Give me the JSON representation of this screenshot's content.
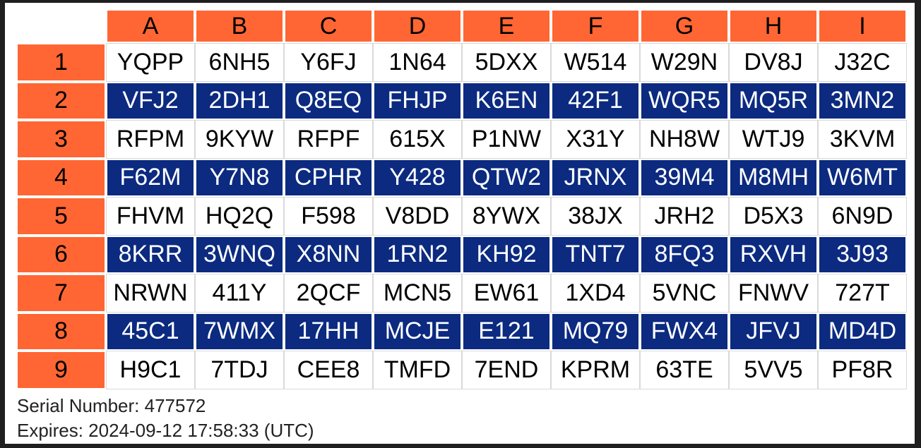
{
  "grid": {
    "columns": [
      "A",
      "B",
      "C",
      "D",
      "E",
      "F",
      "G",
      "H",
      "I"
    ],
    "rows": [
      {
        "label": "1",
        "codes": [
          "YQPP",
          "6NH5",
          "Y6FJ",
          "1N64",
          "5DXX",
          "W514",
          "W29N",
          "DV8J",
          "J32C"
        ]
      },
      {
        "label": "2",
        "codes": [
          "VFJ2",
          "2DH1",
          "Q8EQ",
          "FHJP",
          "K6EN",
          "42F1",
          "WQR5",
          "MQ5R",
          "3MN2"
        ]
      },
      {
        "label": "3",
        "codes": [
          "RFPM",
          "9KYW",
          "RFPF",
          "615X",
          "P1NW",
          "X31Y",
          "NH8W",
          "WTJ9",
          "3KVM"
        ]
      },
      {
        "label": "4",
        "codes": [
          "F62M",
          "Y7N8",
          "CPHR",
          "Y428",
          "QTW2",
          "JRNX",
          "39M4",
          "M8MH",
          "W6MT"
        ]
      },
      {
        "label": "5",
        "codes": [
          "FHVM",
          "HQ2Q",
          "F598",
          "V8DD",
          "8YWX",
          "38JX",
          "JRH2",
          "D5X3",
          "6N9D"
        ]
      },
      {
        "label": "6",
        "codes": [
          "8KRR",
          "3WNQ",
          "X8NN",
          "1RN2",
          "KH92",
          "TNT7",
          "8FQ3",
          "RXVH",
          "3J93"
        ]
      },
      {
        "label": "7",
        "codes": [
          "NRWN",
          "411Y",
          "2QCF",
          "MCN5",
          "EW61",
          "1XD4",
          "5VNC",
          "FNWV",
          "727T"
        ]
      },
      {
        "label": "8",
        "codes": [
          "45C1",
          "7WMX",
          "17HH",
          "MCJE",
          "E121",
          "MQ79",
          "FWX4",
          "JFVJ",
          "MD4D"
        ]
      },
      {
        "label": "9",
        "codes": [
          "H9C1",
          "7TDJ",
          "CEE8",
          "TMFD",
          "7END",
          "KPRM",
          "63TE",
          "5VV5",
          "PF8R"
        ]
      }
    ]
  },
  "footer": {
    "serial": "Serial Number: 477572",
    "expires": "Expires: 2024-09-12 17:58:33 (UTC)"
  },
  "colors": {
    "header_orange": "#ff6633",
    "band_navy": "#0b2a80",
    "background": "#ffffff"
  }
}
